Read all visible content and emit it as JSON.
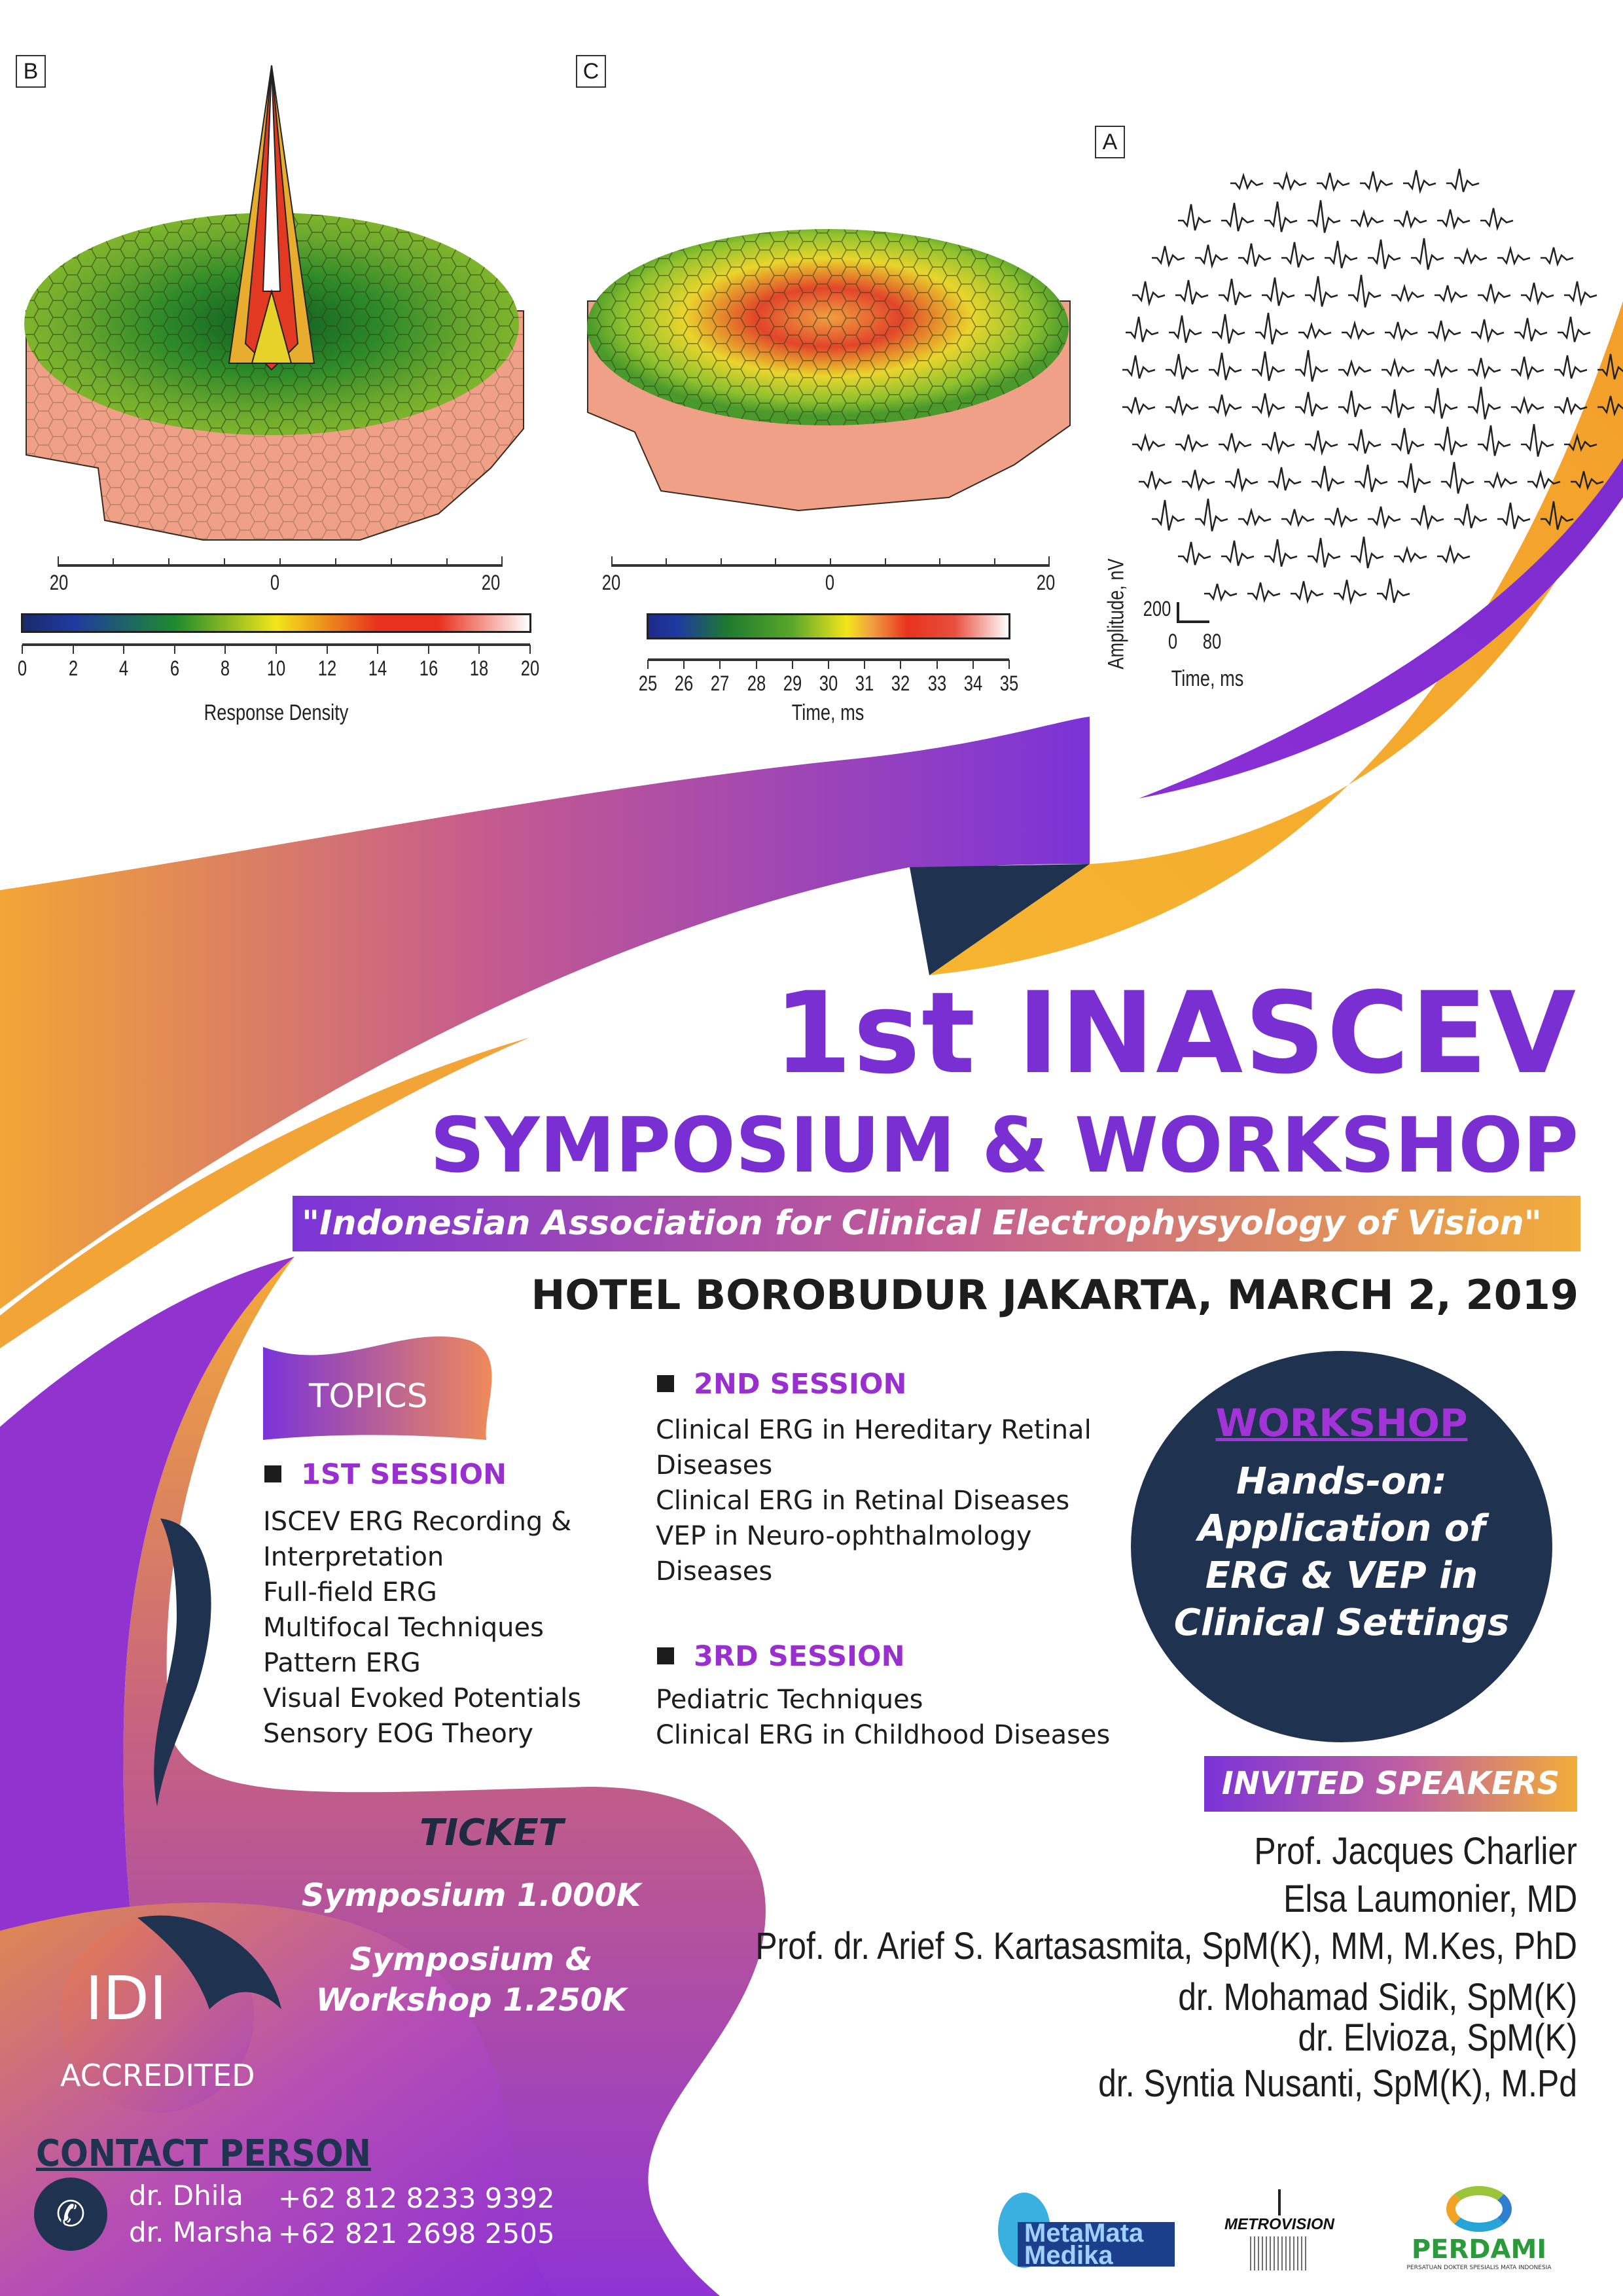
{
  "colors": {
    "purple": "#7a2fd3",
    "orange": "#f4ad35",
    "navy": "#1e3150",
    "session": "#9a2fd0"
  },
  "chart_data": [
    {
      "type": "surface",
      "panel": "B",
      "axis_ticks": [
        "20",
        "0",
        "20"
      ],
      "colorbar_ticks": [
        "0",
        "2",
        "4",
        "6",
        "8",
        "10",
        "12",
        "14",
        "16",
        "18",
        "20"
      ],
      "colorbar_label": "Response Density",
      "colormap": [
        "#1a2f8c",
        "#1e8a2e",
        "#f2e61a",
        "#e8321e",
        "#ffffff"
      ]
    },
    {
      "type": "surface",
      "panel": "C",
      "axis_ticks": [
        "20",
        "0",
        "20"
      ],
      "colorbar_ticks": [
        "25",
        "26",
        "27",
        "28",
        "29",
        "30",
        "31",
        "32",
        "33",
        "34",
        "35"
      ],
      "colorbar_label": "Time, ms",
      "colormap": [
        "#1a2f8c",
        "#1e8a2e",
        "#f2e61a",
        "#e8321e",
        "#ffffff"
      ]
    },
    {
      "type": "line",
      "panel": "A",
      "scale_amplitude": "200",
      "scale_time": [
        "0",
        "80"
      ],
      "ylabel": "Amplitude, nV",
      "xlabel": "Time, ms"
    }
  ],
  "title": {
    "line1": "1st INASCEV",
    "line2": "SYMPOSIUM & WORKSHOP",
    "quote": "\"Indonesian Association for Clinical Electrophysyology of Vision\"",
    "venue": "HOTEL BOROBUDUR JAKARTA, MARCH 2, 2019"
  },
  "topics": {
    "label": "TOPICS",
    "sessions": [
      {
        "title": "1ST SESSION",
        "items": [
          "ISCEV ERG Recording &",
          "Interpretation",
          "Full-field ERG",
          "Multifocal Techniques",
          "Pattern ERG",
          "Visual Evoked Potentials",
          "Sensory EOG Theory"
        ]
      },
      {
        "title": "2ND SESSION",
        "items": [
          "Clinical ERG in Hereditary Retinal",
          "Diseases",
          "Clinical ERG in Retinal Diseases",
          "VEP in Neuro-ophthalmology",
          "Diseases"
        ]
      },
      {
        "title": "3RD SESSION",
        "items": [
          "Pediatric Techniques",
          "Clinical ERG in Childhood Diseases"
        ]
      }
    ]
  },
  "workshop": {
    "label": "WORKSHOP",
    "lines": [
      "Hands-on:",
      "Application of",
      "ERG & VEP in",
      "Clinical Settings"
    ]
  },
  "speakers": {
    "label": "INVITED SPEAKERS",
    "names": [
      "Prof. Jacques Charlier",
      "Elsa Laumonier, MD",
      "Prof. dr. Arief S. Kartasasmita, SpM(K), MM, M.Kes, PhD",
      "dr. Mohamad Sidik, SpM(K)",
      "dr. Elvioza, SpM(K)",
      "dr. Syntia Nusanti, SpM(K), M.Pd"
    ]
  },
  "ticket": {
    "label": "TICKET",
    "symposium": "Symposium 1.000K",
    "workshop_line1": "Symposium &",
    "workshop_line2": "Workshop 1.250K"
  },
  "idi": {
    "logo": "IDI",
    "label": "ACCREDITED"
  },
  "contact": {
    "label": "CONTACT PERSON",
    "people": [
      {
        "name": "dr. Dhila",
        "phone": "+62 812 8233 9392"
      },
      {
        "name": "dr. Marsha",
        "phone": "+62 821 2698 2505"
      }
    ]
  },
  "sponsors": [
    {
      "name": "MetaMata Medika"
    },
    {
      "name": "METROVISION"
    },
    {
      "name": "PERDAMI",
      "subtitle": "PERSATUAN DOKTER SPESIALIS MATA INDONESIA"
    }
  ]
}
